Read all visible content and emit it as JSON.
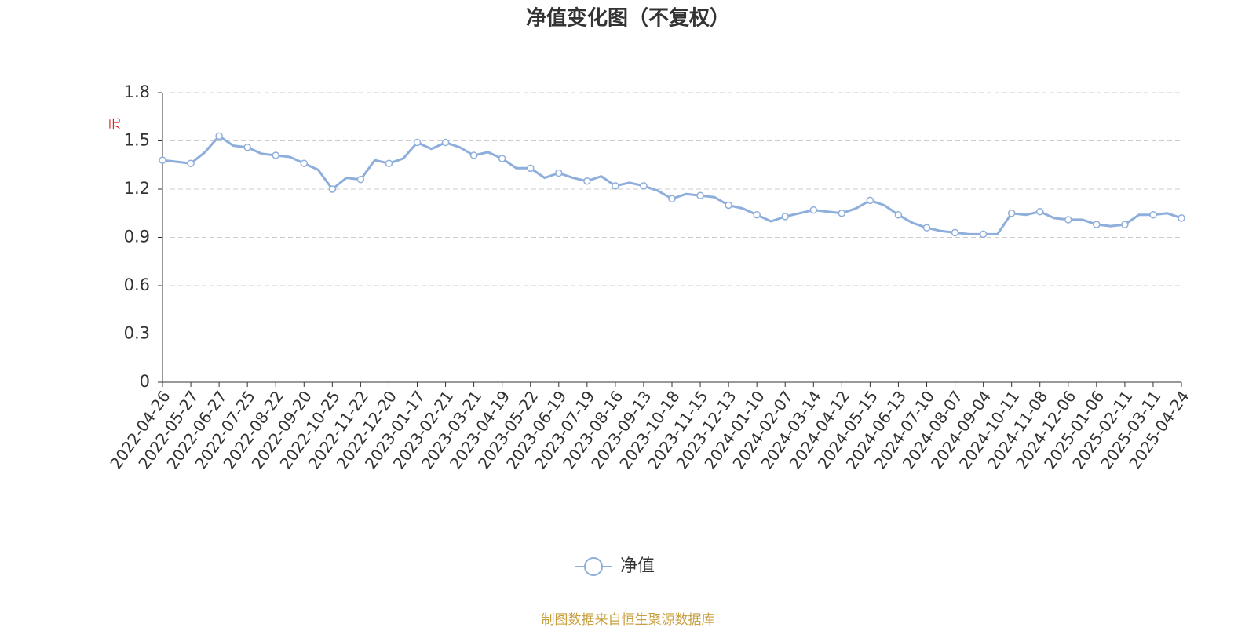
{
  "chart_data": {
    "type": "line",
    "title": "净值变化图（不复权）",
    "y_label": "元",
    "source": "制图数据来自恒生聚源数据库",
    "categories": [
      "2022-04-26",
      null,
      "2022-05-27",
      null,
      "2022-06-27",
      null,
      "2022-07-25",
      null,
      "2022-08-22",
      null,
      "2022-09-20",
      null,
      "2022-10-25",
      null,
      "2022-11-22",
      null,
      "2022-12-20",
      null,
      "2023-01-17",
      null,
      "2023-02-21",
      null,
      "2023-03-21",
      null,
      "2023-04-19",
      null,
      "2023-05-22",
      null,
      "2023-06-19",
      null,
      "2023-07-19",
      null,
      "2023-08-16",
      null,
      "2023-09-13",
      null,
      "2023-10-18",
      null,
      "2023-11-15",
      null,
      "2023-12-13",
      null,
      "2024-01-10",
      null,
      "2024-02-07",
      null,
      "2024-03-14",
      null,
      "2024-04-12",
      null,
      "2024-05-15",
      null,
      "2024-06-13",
      null,
      "2024-07-10",
      null,
      "2024-08-07",
      null,
      "2024-09-04",
      null,
      "2024-10-11",
      null,
      "2024-11-08",
      null,
      "2024-12-06",
      null,
      "2025-01-06",
      null,
      "2025-02-11",
      null,
      "2025-03-11",
      null,
      "2025-04-24"
    ],
    "series": [
      {
        "name": "净值",
        "color": "#8eaedb",
        "values": [
          1.38,
          1.37,
          1.36,
          1.43,
          1.53,
          1.47,
          1.46,
          1.42,
          1.41,
          1.4,
          1.36,
          1.32,
          1.2,
          1.27,
          1.26,
          1.38,
          1.36,
          1.39,
          1.49,
          1.45,
          1.49,
          1.46,
          1.41,
          1.43,
          1.39,
          1.33,
          1.33,
          1.27,
          1.3,
          1.27,
          1.25,
          1.28,
          1.22,
          1.24,
          1.22,
          1.19,
          1.14,
          1.17,
          1.16,
          1.15,
          1.1,
          1.08,
          1.04,
          1.0,
          1.03,
          1.05,
          1.07,
          1.06,
          1.05,
          1.08,
          1.13,
          1.1,
          1.04,
          0.99,
          0.96,
          0.94,
          0.93,
          0.92,
          0.92,
          0.92,
          1.05,
          1.04,
          1.06,
          1.02,
          1.01,
          1.01,
          0.98,
          0.97,
          0.98,
          1.04,
          1.04,
          1.05,
          1.02
        ]
      }
    ],
    "ylim": [
      0,
      1.8
    ],
    "yticks": [
      0,
      0.3,
      0.6,
      0.9,
      1.2,
      1.5,
      1.8
    ],
    "grid": true,
    "legend": "bottom"
  }
}
